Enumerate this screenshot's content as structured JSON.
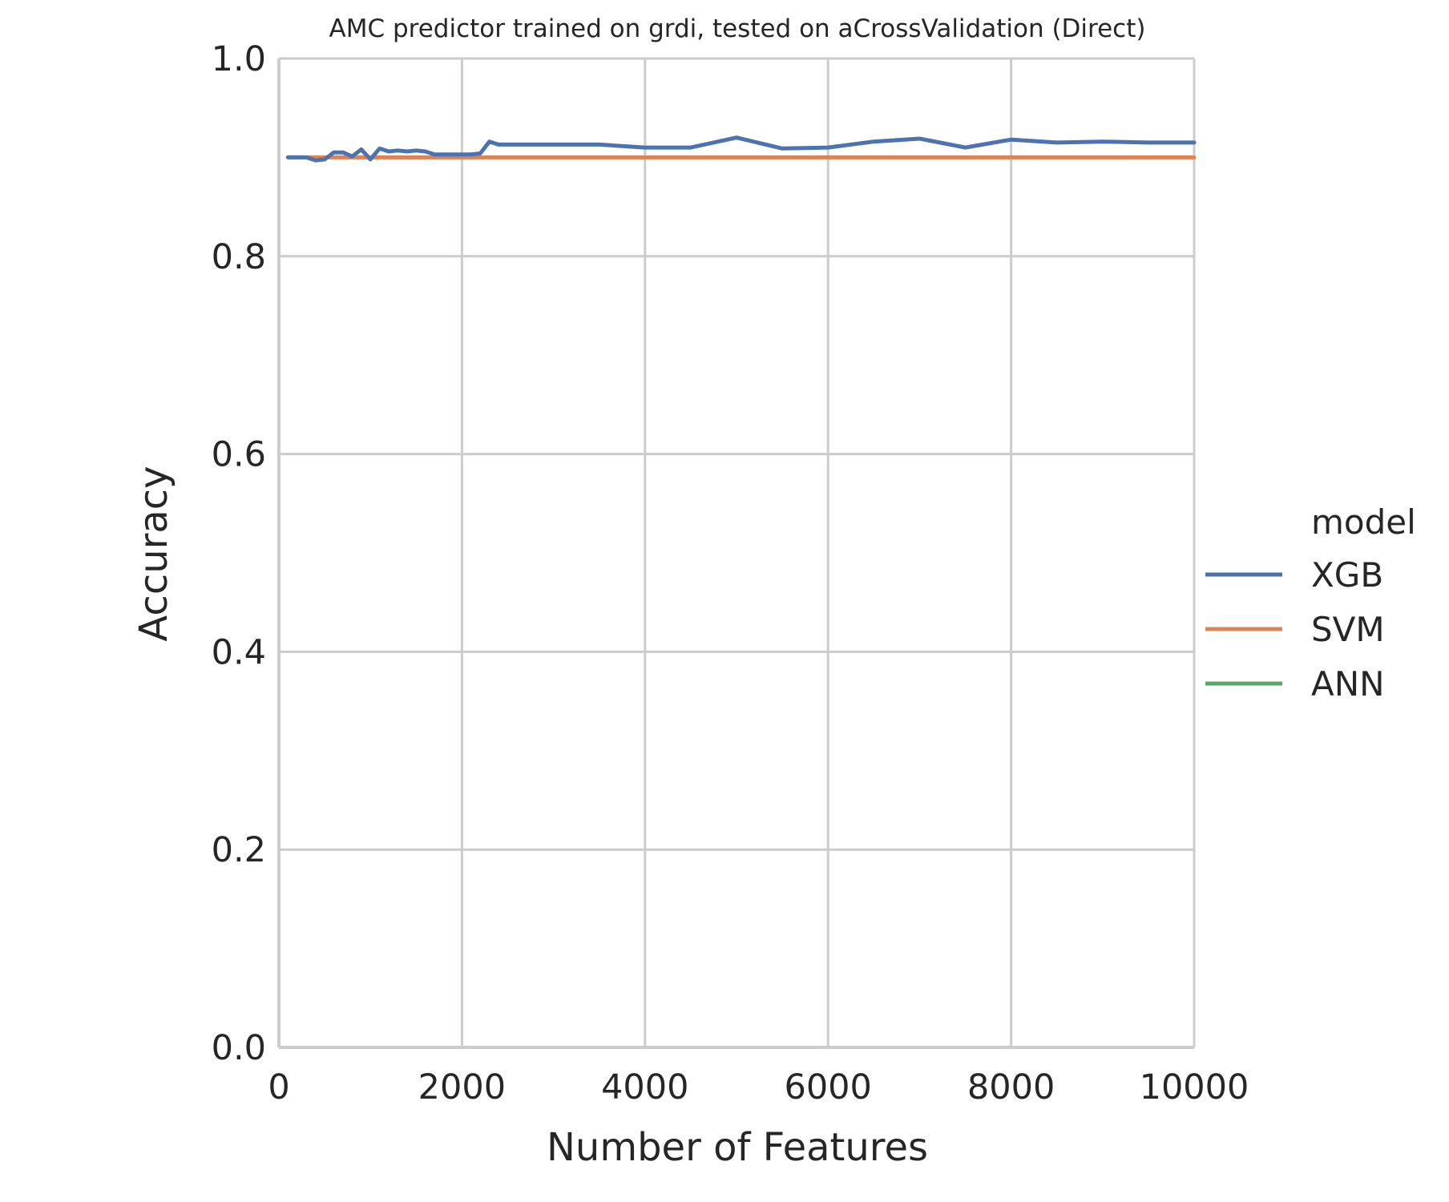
{
  "chart_data": {
    "type": "line",
    "title": "AMC predictor trained on grdi, tested on aCrossValidation (Direct)",
    "xlabel": "Number of Features",
    "ylabel": "Accuracy",
    "xlim": [
      0,
      10000
    ],
    "ylim": [
      0.0,
      1.0
    ],
    "xticks": [
      0,
      2000,
      4000,
      6000,
      8000,
      10000
    ],
    "xtick_labels": [
      "0",
      "2000",
      "4000",
      "6000",
      "8000",
      "10000"
    ],
    "yticks": [
      0.0,
      0.2,
      0.4,
      0.6,
      0.8,
      1.0
    ],
    "ytick_labels": [
      "0.0",
      "0.2",
      "0.4",
      "0.6",
      "0.8",
      "1.0"
    ],
    "grid": true,
    "legend": {
      "title": "model",
      "placement": "right"
    },
    "series": [
      {
        "name": "XGB",
        "color": "#4c72b0",
        "x": [
          100,
          200,
          300,
          400,
          500,
          600,
          700,
          800,
          900,
          1000,
          1100,
          1200,
          1300,
          1400,
          1500,
          1600,
          1700,
          1800,
          1900,
          2000,
          2100,
          2200,
          2300,
          2400,
          2500,
          3000,
          3500,
          4000,
          4500,
          5000,
          5500,
          6000,
          6500,
          7000,
          7500,
          8000,
          8500,
          9000,
          9500,
          10000
        ],
        "y": [
          0.9,
          0.9,
          0.9,
          0.897,
          0.898,
          0.905,
          0.905,
          0.901,
          0.908,
          0.898,
          0.909,
          0.906,
          0.907,
          0.906,
          0.907,
          0.906,
          0.903,
          0.903,
          0.903,
          0.903,
          0.903,
          0.904,
          0.916,
          0.913,
          0.913,
          0.913,
          0.913,
          0.91,
          0.91,
          0.92,
          0.909,
          0.91,
          0.916,
          0.919,
          0.91,
          0.918,
          0.915,
          0.916,
          0.915,
          0.915
        ]
      },
      {
        "name": "SVM",
        "color": "#dd8452",
        "x": [
          100,
          10000
        ],
        "y": [
          0.9,
          0.9
        ]
      },
      {
        "name": "ANN",
        "color": "#55a868",
        "x": [],
        "y": []
      }
    ]
  }
}
